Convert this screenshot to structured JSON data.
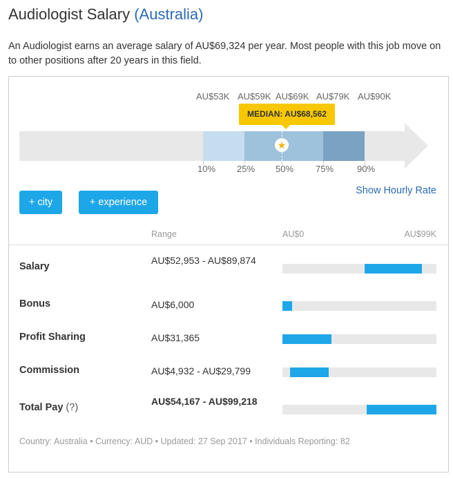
{
  "header": {
    "title": "Audiologist Salary",
    "country": "(Australia)"
  },
  "intro": "An Audiologist earns an average salary of AU$69,324 per year. Most people with this job move on to other positions after 20 years in this field.",
  "distribution": {
    "percentile_values": [
      "AU$53K",
      "AU$59K",
      "AU$69K",
      "AU$79K",
      "AU$90K"
    ],
    "percentile_labels": [
      "10%",
      "25%",
      "50%",
      "75%",
      "90%"
    ],
    "median_label": "MEDIAN: AU$68,562",
    "median_icon": "star-icon"
  },
  "actions": {
    "city_button": "+ city",
    "experience_button": "+ experience",
    "hourly_link": "Show Hourly Rate"
  },
  "table": {
    "range_header": "Range",
    "scale_min": "AU$0",
    "scale_max": "AU$99K",
    "scale_max_value": 99,
    "rows": [
      {
        "label": "Salary",
        "help": "",
        "range": "AU$52,953 - AU$89,874",
        "bold": false,
        "low": 52.953,
        "high": 89.874
      },
      {
        "label": "Bonus",
        "help": "",
        "range": "AU$6,000",
        "bold": false,
        "low": 0,
        "high": 6.0
      },
      {
        "label": "Profit Sharing",
        "help": "",
        "range": "AU$31,365",
        "bold": false,
        "low": 0,
        "high": 31.365
      },
      {
        "label": "Commission",
        "help": "",
        "range": "AU$4,932 - AU$29,799",
        "bold": false,
        "low": 4.932,
        "high": 29.799
      },
      {
        "label": "Total Pay",
        "help": "(?)",
        "range": "AU$54,167 - AU$99,218",
        "bold": true,
        "low": 54.167,
        "high": 99.218
      }
    ]
  },
  "footer": "Country: Australia • Currency: AUD • Updated: 27 Sep 2017 • Individuals Reporting: 82",
  "colors": {
    "accent": "#1ea7e8",
    "link": "#2a6ab5",
    "median": "#f7c800"
  }
}
